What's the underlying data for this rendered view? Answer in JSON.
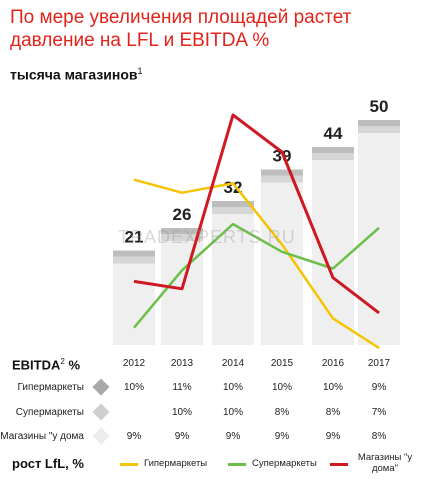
{
  "title": "По мере увеличения площадей растет давление на LFL и EBITDA %",
  "subtitle": "тысяча магазинов",
  "subtitle_sup": "1",
  "watermark": "TRADEXPERTS.RU",
  "chart_data": {
    "type": "bar",
    "categories": [
      "2012",
      "2013",
      "2014",
      "2015",
      "2016",
      "2017"
    ],
    "values": [
      21,
      26,
      32,
      39,
      44,
      50
    ],
    "ylabel": "тысяча магазинов",
    "lines_lfl": [
      {
        "name": "Гипермаркеты",
        "color": "#f5c400",
        "values": [
          6.5,
          5.8,
          6.3,
          3.0,
          -1.0,
          -2.6
        ]
      },
      {
        "name": "Супермаркеты",
        "color": "#6cc04a",
        "values": [
          -1.5,
          1.6,
          4.1,
          2.6,
          1.7,
          3.9
        ]
      },
      {
        "name": "Магазины \"у дома\"",
        "color": "#d01822",
        "values": [
          1.0,
          0.6,
          10.0,
          8.0,
          1.2,
          -0.7
        ]
      }
    ]
  },
  "ebitda": {
    "label": "EBITDA",
    "label_sup": "2",
    "label_suffix": " %",
    "rows": [
      {
        "label": "Гипермаркеты",
        "color": "#a8a8a8",
        "values": [
          "10%",
          "11%",
          "10%",
          "10%",
          "10%",
          "9%"
        ]
      },
      {
        "label": "Супермаркеты",
        "color": "#cfcfcf",
        "values": [
          "",
          "10%",
          "10%",
          "8%",
          "8%",
          "7%"
        ]
      },
      {
        "label": "Магазины \"у дома",
        "color": "#ececec",
        "values": [
          "9%",
          "9%",
          "9%",
          "9%",
          "9%",
          "8%"
        ]
      }
    ]
  },
  "lfl": {
    "label": "рост LfL, %",
    "legend": [
      {
        "label": "Гипермаркеты",
        "color": "#f5c400"
      },
      {
        "label": "Супермаркеты",
        "color": "#6cc04a"
      },
      {
        "label": "Магазины \"у дома\"",
        "color": "#d01822"
      }
    ]
  }
}
